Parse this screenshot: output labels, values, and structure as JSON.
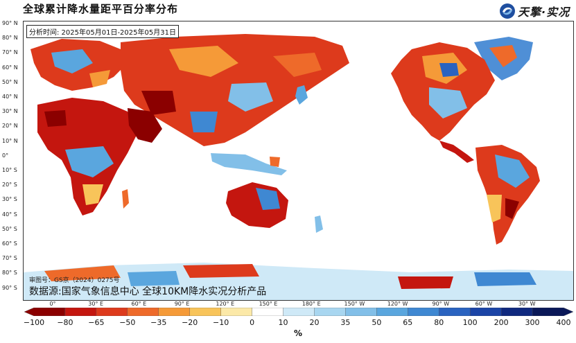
{
  "title": "全球累计降水量距平百分率分布",
  "logo": {
    "text": "天擎·实况",
    "icon": "logo-swirl-icon"
  },
  "time_box": "分析时间: 2025年05月01日-2025年05月31日",
  "approval": "审图号：GS京（2024）0275号",
  "source": "数据源:国家气象信息中心 全球10KM降水实况分析产品",
  "lat_labels": [
    "90° N",
    "80° N",
    "70° N",
    "60° N",
    "50° N",
    "40° N",
    "30° N",
    "20° N",
    "10° N",
    "0°",
    "10° S",
    "20° S",
    "30° S",
    "40° S",
    "50° S",
    "60° S",
    "70° S",
    "80° S",
    "90° S"
  ],
  "lon_labels": [
    "0°",
    "30° E",
    "60° E",
    "90° E",
    "120° E",
    "150° E",
    "180° E",
    "150° W",
    "120° W",
    "90° W",
    "60° W",
    "30° W"
  ],
  "colorbar": {
    "labels": [
      "−100",
      "−80",
      "−65",
      "−50",
      "−35",
      "−20",
      "−10",
      "0",
      "10",
      "20",
      "35",
      "50",
      "65",
      "80",
      "100",
      "200",
      "300",
      "400"
    ],
    "colors": [
      "#8b0000",
      "#c4160f",
      "#dd3a1c",
      "#ee6a2a",
      "#f59a38",
      "#f8c45a",
      "#fce9a8",
      "#ffffff",
      "#cfe9f7",
      "#a8d6f0",
      "#82bfe8",
      "#5aa6de",
      "#3f88d2",
      "#2a63c0",
      "#1b44a6",
      "#10297f",
      "#0a1858"
    ],
    "unit": "%"
  }
}
